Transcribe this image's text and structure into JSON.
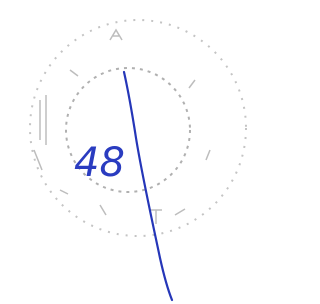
{
  "annotation": {
    "text": "48"
  }
}
